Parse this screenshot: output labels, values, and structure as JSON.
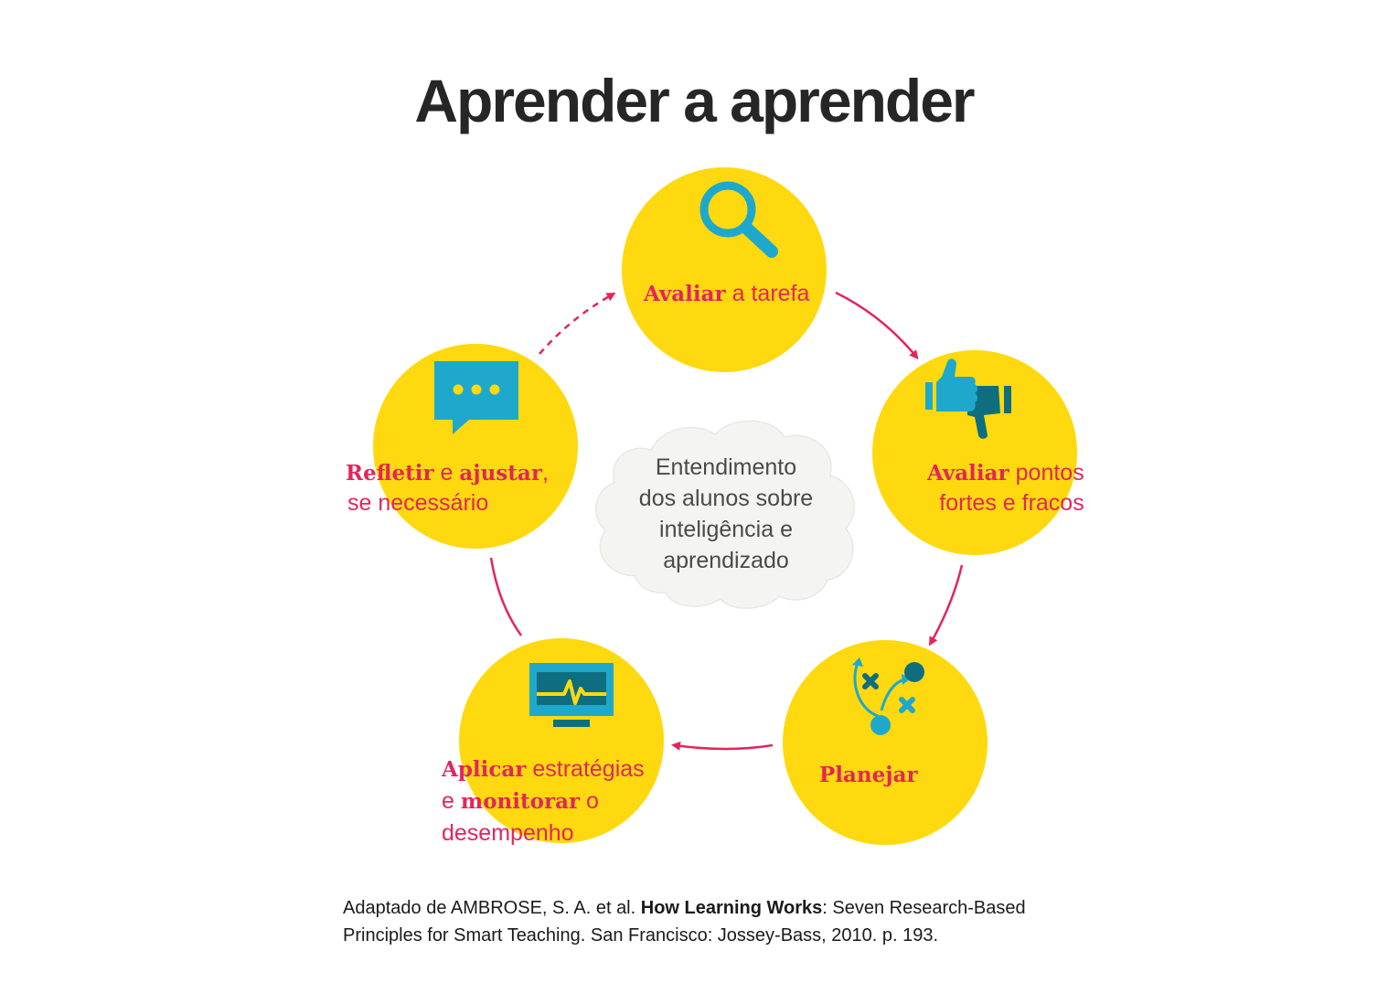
{
  "title": "Aprender a aprender",
  "center": {
    "lines": [
      "Entendimento",
      "dos alunos sobre",
      "inteligência e",
      "aprendizado"
    ]
  },
  "steps": [
    {
      "id": "avaliar-tarefa",
      "bold1": "Avaliar",
      "text1": " a tarefa",
      "icon": "magnifier-icon"
    },
    {
      "id": "avaliar-pontos",
      "bold1": "Avaliar",
      "text1": " pontos",
      "line2": "fortes e fracos",
      "icon": "thumbs-up-down-icon"
    },
    {
      "id": "planejar",
      "bold1": "Planejar",
      "icon": "game-plan-icon"
    },
    {
      "id": "aplicar",
      "bold1": "Aplicar",
      "text1": " estratégias",
      "line2a": "e ",
      "bold2": "monitorar",
      "line2b": " o",
      "line3": "desempenho",
      "icon": "monitor-icon"
    },
    {
      "id": "refletir",
      "bold1": "Refletir",
      "text1": " e ",
      "bold2": "ajustar",
      "text2": ",",
      "line2": "se necessário",
      "icon": "chat-bubble-icon"
    }
  ],
  "source": {
    "pre": "Adaptado de AMBROSE, S. A. et al. ",
    "bold": "How Learning Works",
    "post": ": Seven Research-Based",
    "line2": "Principles for Smart Teaching. San Francisco: Jossey-Bass, 2010. p. 193."
  },
  "colors": {
    "circle": "#ffd90f",
    "accent": "#e4255a",
    "icon_light": "#1ea9cc",
    "icon_dark": "#0e6e80",
    "cloud": "#f3f3f3"
  }
}
